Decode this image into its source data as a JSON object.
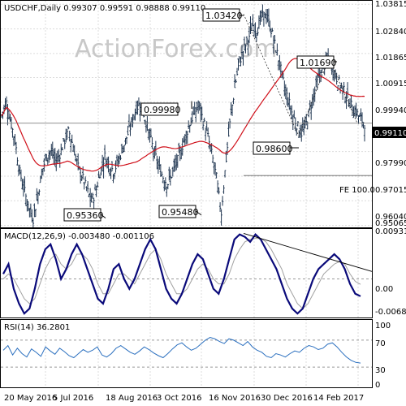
{
  "colors": {
    "price_bar": "#1f3550",
    "ma_line": "#d0101a",
    "macd_line": "#0a0a7a",
    "signal_line": "#a0a0a0",
    "rsi_line": "#2a6fbf",
    "grid": "#dcdcdc",
    "level_line": "#606060",
    "watermark": "#c8c8c8"
  },
  "watermark": "ActionForex.com",
  "chart_data": [
    {
      "type": "ohlc",
      "title": "USDCHF,Daily  0.99307 0.99591 0.98888 0.99110",
      "x_tick_labels": [
        "20 May 2016",
        "5 Jul 2016",
        "18 Aug 2016",
        "3 Oct 2016",
        "16 Nov 2016",
        "30 Dec 2016",
        "14 Feb 2017"
      ],
      "y_tick_labels": [
        "1.03815",
        "1.02840",
        "1.01865",
        "1.00915",
        "0.99940",
        "0.97990",
        "0.97015",
        "0.96040",
        "0.95065"
      ],
      "ylim": [
        0.9499,
        1.0395
      ],
      "current_price": "0.99110",
      "callouts": [
        "1.03420",
        "1.01690",
        "0.99980",
        "0.98600",
        "0.95360",
        "0.95480"
      ],
      "fe_label": "FE 100.0",
      "fe_level": 0.9704,
      "moving_average": true,
      "close_path": [
        0.994,
        1.0,
        0.992,
        0.984,
        0.972,
        0.965,
        0.958,
        0.953,
        0.962,
        0.972,
        0.978,
        0.98,
        0.976,
        0.979,
        0.984,
        0.988,
        0.982,
        0.974,
        0.97,
        0.965,
        0.96,
        0.964,
        0.972,
        0.978,
        0.975,
        0.972,
        0.976,
        0.981,
        0.986,
        0.991,
        0.997,
        0.999,
        0.993,
        0.986,
        0.98,
        0.974,
        0.97,
        0.967,
        0.971,
        0.975,
        0.98,
        0.986,
        0.991,
        0.995,
        0.998,
        0.992,
        0.986,
        0.978,
        0.969,
        0.955,
        0.975,
        0.992,
        1.005,
        1.015,
        1.02,
        1.024,
        1.03,
        1.028,
        1.033,
        1.034,
        1.029,
        1.022,
        1.015,
        1.006,
        1.0,
        0.994,
        0.99,
        0.987,
        0.991,
        0.998,
        1.005,
        1.01,
        1.014,
        1.016,
        1.012,
        1.008,
        1.005,
        1.002,
        0.998,
        0.996,
        0.993,
        0.991
      ]
    },
    {
      "type": "line",
      "title": "MACD(12,26,9)  -0.003480  -0.001106",
      "y_tick_labels": [
        "0.009318",
        "0.00",
        "-0.006894"
      ],
      "ylim": [
        -0.0078,
        0.0101
      ],
      "series": [
        {
          "values": [
            0.001,
            0.003,
            -0.002,
            -0.005,
            -0.007,
            -0.006,
            -0.002,
            0.003,
            0.006,
            0.007,
            0.004,
            0.0,
            0.002,
            0.005,
            0.007,
            0.005,
            0.002,
            -0.001,
            -0.004,
            -0.005,
            -0.002,
            0.002,
            0.003,
            0.0,
            -0.002,
            0.0,
            0.003,
            0.006,
            0.008,
            0.006,
            0.002,
            -0.002,
            -0.004,
            -0.005,
            -0.003,
            0.0,
            0.003,
            0.005,
            0.004,
            0.001,
            -0.002,
            -0.003,
            0.0,
            0.004,
            0.008,
            0.009,
            0.0085,
            0.0075,
            0.009,
            0.008,
            0.006,
            0.004,
            0.002,
            -0.001,
            -0.004,
            -0.006,
            -0.007,
            -0.006,
            -0.003,
            0.0,
            0.002,
            0.003,
            0.004,
            0.005,
            0.004,
            0.002,
            -0.001,
            -0.003,
            -0.0035
          ]
        },
        {
          "values": [
            0.0,
            0.001,
            0.0,
            -0.002,
            -0.004,
            -0.005,
            -0.004,
            -0.001,
            0.002,
            0.004,
            0.005,
            0.003,
            0.002,
            0.003,
            0.005,
            0.005,
            0.004,
            0.002,
            -0.001,
            -0.003,
            -0.003,
            -0.001,
            0.001,
            0.001,
            0.0,
            -0.001,
            0.001,
            0.003,
            0.005,
            0.006,
            0.004,
            0.001,
            -0.001,
            -0.003,
            -0.003,
            -0.002,
            0.0,
            0.002,
            0.003,
            0.002,
            0.0,
            -0.001,
            -0.001,
            0.001,
            0.004,
            0.006,
            0.0075,
            0.008,
            0.0082,
            0.0082,
            0.0075,
            0.006,
            0.004,
            0.002,
            -0.001,
            -0.003,
            -0.005,
            -0.006,
            -0.005,
            -0.003,
            -0.001,
            0.001,
            0.002,
            0.003,
            0.0035,
            0.003,
            0.001,
            -0.0005,
            -0.0011
          ]
        }
      ],
      "trendline": [
        0.0092,
        0.0015
      ]
    },
    {
      "type": "line",
      "title": "RSI(14)  36.2801",
      "y_tick_labels": [
        "100",
        "70",
        "30",
        "0"
      ],
      "ylim": [
        0,
        100
      ],
      "levels": [
        70,
        30
      ],
      "series": [
        {
          "values": [
            55,
            62,
            48,
            58,
            50,
            45,
            57,
            52,
            46,
            60,
            54,
            49,
            58,
            53,
            47,
            44,
            50,
            56,
            52,
            55,
            60,
            48,
            45,
            50,
            58,
            62,
            57,
            52,
            49,
            54,
            60,
            56,
            51,
            47,
            44,
            50,
            57,
            63,
            66,
            60,
            55,
            58,
            64,
            70,
            74,
            72,
            68,
            65,
            72,
            70,
            66,
            62,
            68,
            60,
            55,
            52,
            46,
            44,
            50,
            48,
            45,
            50,
            54,
            52,
            58,
            62,
            60,
            56,
            58,
            64,
            66,
            60,
            52,
            45,
            40,
            37,
            36
          ]
        }
      ]
    }
  ]
}
